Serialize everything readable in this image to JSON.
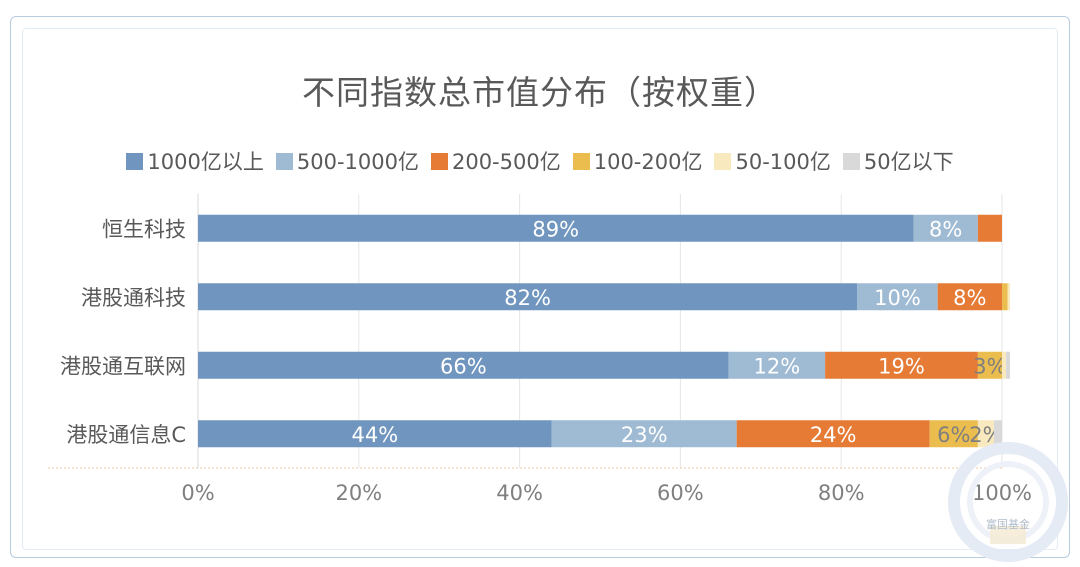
{
  "chart_data": {
    "type": "bar",
    "orientation": "horizontal",
    "stacked": true,
    "title": "不同指数总市值分布（按权重）",
    "categories": [
      "恒生科技",
      "港股通科技",
      "港股通互联网",
      "港股通信息C"
    ],
    "series": [
      {
        "name": "1000亿以上",
        "color": "#7096bf",
        "values": [
          89,
          82,
          66,
          44
        ],
        "labels": [
          "89%",
          "82%",
          "66%",
          "44%"
        ]
      },
      {
        "name": "500-1000亿",
        "color": "#9fbad3",
        "values": [
          8,
          10,
          12,
          23
        ],
        "labels": [
          "8%",
          "10%",
          "12%",
          "23%"
        ]
      },
      {
        "name": "200-500亿",
        "color": "#e57b35",
        "values": [
          3,
          8,
          19,
          24
        ],
        "labels": [
          "",
          "8%",
          "19%",
          "24%"
        ]
      },
      {
        "name": "100-200亿",
        "color": "#eabd4e",
        "values": [
          0,
          0.7,
          3,
          6
        ],
        "labels": [
          "",
          "",
          "3%",
          "6%"
        ]
      },
      {
        "name": "50-100亿",
        "color": "#f8e9bf",
        "values": [
          0,
          0.3,
          0.5,
          2
        ],
        "labels": [
          "",
          "",
          "",
          "2%"
        ]
      },
      {
        "name": "50亿以下",
        "color": "#d9d9d9",
        "values": [
          0,
          0,
          0.5,
          1
        ],
        "labels": [
          "",
          "",
          "",
          ""
        ]
      }
    ],
    "xlim": [
      0,
      100
    ],
    "xticks": [
      "0%",
      "20%",
      "40%",
      "60%",
      "80%",
      "100%"
    ],
    "legend_position": "top",
    "grid": true
  },
  "watermark_text": "富国基金"
}
